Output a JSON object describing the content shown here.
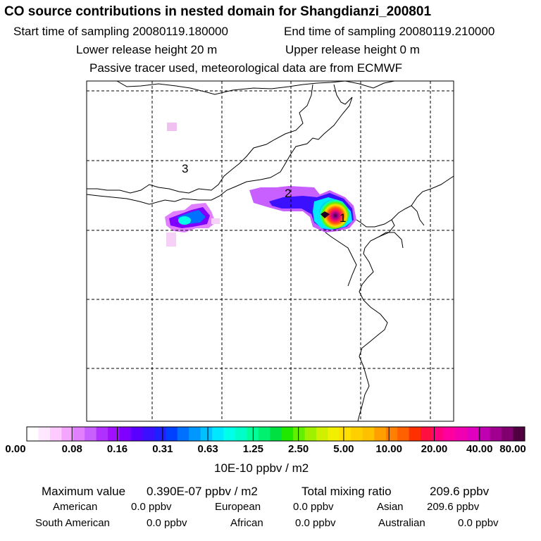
{
  "header": {
    "title": "CO  source contributions in nested domain for Shangdianzi_200801",
    "start_label": "Start time of sampling 20080119.180000",
    "end_label": "End time of sampling 20080119.210000",
    "lower_label": "Lower release height   20 m",
    "upper_label": "Upper release height    0 m",
    "tracer_note": "Passive tracer used, meteorological data are from ECMWF"
  },
  "map": {
    "region_labels": [
      "1",
      "2",
      "3"
    ]
  },
  "colorbar": {
    "unit": "10E-10 ppbv / m2",
    "ticks": [
      "0.00",
      "0.08",
      "0.16",
      "0.31",
      "0.63",
      "1.25",
      "2.50",
      "5.00",
      "10.00",
      "20.00",
      "40.00",
      "80.00"
    ],
    "colors": [
      "#ffffff",
      "#ffe8ff",
      "#ffcaff",
      "#f4a6ff",
      "#e080ff",
      "#c860ff",
      "#b030ff",
      "#a010ff",
      "#8000ff",
      "#5a00ff",
      "#3a10ff",
      "#2020ff",
      "#0040ff",
      "#0070ff",
      "#0098ff",
      "#00c0ff",
      "#00e8ff",
      "#00ffe8",
      "#00ffc8",
      "#00ff98",
      "#00f070",
      "#00e040",
      "#20e800",
      "#60f000",
      "#a0f000",
      "#d0f000",
      "#f0f000",
      "#ffe000",
      "#ffd000",
      "#ffc000",
      "#ffa000",
      "#ff8000",
      "#ff6000",
      "#ff3000",
      "#ff1040",
      "#ff0080",
      "#ff00a0",
      "#f000b0",
      "#e000c0",
      "#c000b0",
      "#a00090",
      "#800070",
      "#500040"
    ]
  },
  "summary": {
    "max_label": "Maximum value",
    "max_value": "0.390E-07 ppbv / m2",
    "total_label": "Total mixing ratio",
    "total_value": "209.6 ppbv",
    "regions": [
      {
        "name": "American",
        "value": "0.0 ppbv"
      },
      {
        "name": "European",
        "value": "0.0 ppbv"
      },
      {
        "name": "Asian",
        "value": "209.6 ppbv"
      },
      {
        "name": "South American",
        "value": "0.0 ppbv"
      },
      {
        "name": "African",
        "value": "0.0 ppbv"
      },
      {
        "name": "Australian",
        "value": "0.0 ppbv"
      }
    ]
  }
}
